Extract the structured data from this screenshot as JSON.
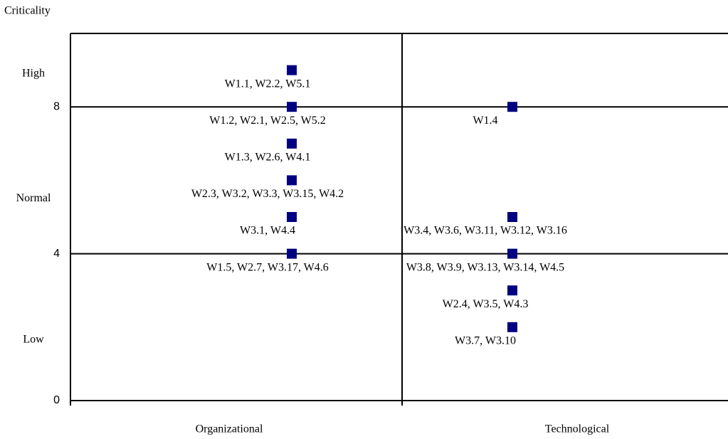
{
  "chart_data": {
    "type": "scatter",
    "y_axis_label": "Criticality",
    "categories": [
      "Organizational",
      "Technological"
    ],
    "ylim": [
      0,
      10
    ],
    "yticks": [
      0,
      4,
      8
    ],
    "grid": true,
    "color": "#000080",
    "y_annotations": [
      {
        "text": "High",
        "y": 8.9
      },
      {
        "text": "Normal",
        "y": 5.5
      },
      {
        "text": "Low",
        "y": 1.65
      }
    ],
    "points": [
      {
        "x": "Organizational",
        "y": 9,
        "label": "W1.1, W2.2, W5.1"
      },
      {
        "x": "Organizational",
        "y": 8,
        "label": "W1.2, W2.1, W2.5, W5.2"
      },
      {
        "x": "Organizational",
        "y": 7,
        "label": "W1.3, W2.6, W4.1"
      },
      {
        "x": "Organizational",
        "y": 6,
        "label": "W2.3, W3.2, W3.3, W3.15, W4.2"
      },
      {
        "x": "Organizational",
        "y": 5,
        "label": "W3.1, W4.4"
      },
      {
        "x": "Organizational",
        "y": 4,
        "label": "W1.5, W2.7, W3.17, W4.6"
      },
      {
        "x": "Technological",
        "y": 8,
        "label": "W1.4"
      },
      {
        "x": "Technological",
        "y": 5,
        "label": "W3.4, W3.6, W3.11, W3.12, W3.16"
      },
      {
        "x": "Technological",
        "y": 4,
        "label": "W3.8, W3.9, W3.13, W3.14, W4.5"
      },
      {
        "x": "Technological",
        "y": 3,
        "label": "W2.4, W3.5, W4.3"
      },
      {
        "x": "Technological",
        "y": 2,
        "label": "W3.7, W3.10"
      }
    ]
  }
}
